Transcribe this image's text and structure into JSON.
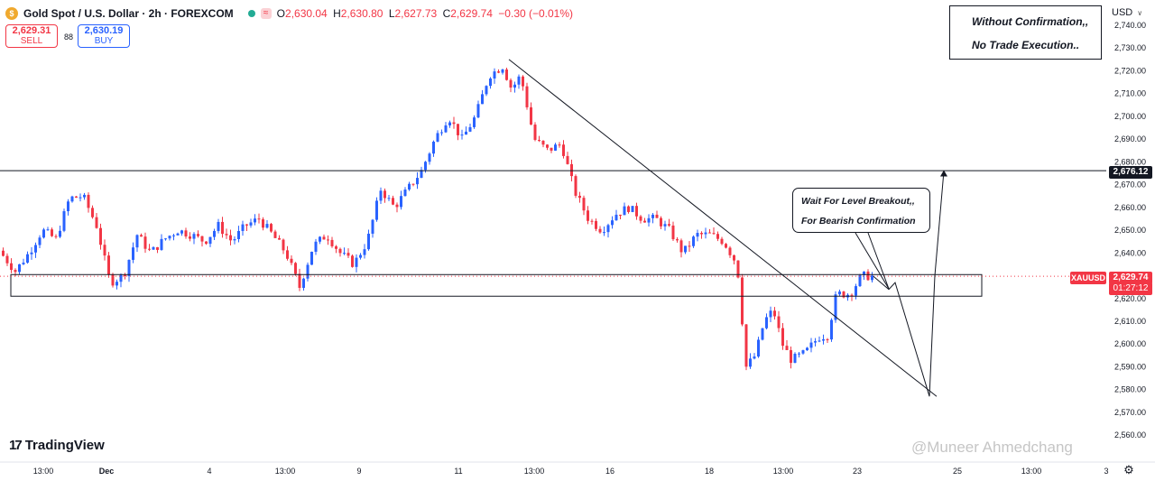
{
  "header": {
    "symbol_title": "Gold Spot / U.S. Dollar · 2h · FOREXCOM",
    "ohlc": {
      "o_label": "O",
      "o": "2,630.04",
      "h_label": "H",
      "h": "2,630.80",
      "l_label": "L",
      "l": "2,627.73",
      "c_label": "C",
      "c": "2,629.74",
      "change": "−0.30 (−0.01%)"
    },
    "icons": [
      "gold-coin-icon",
      "market-open-dot-icon",
      "wave-badge-icon"
    ]
  },
  "trade": {
    "sell_price": "2,629.31",
    "sell_label": "SELL",
    "spread": "88",
    "buy_price": "2,630.19",
    "buy_label": "BUY"
  },
  "notes": {
    "line1": "Without Confirmation,,",
    "line2": "No Trade Execution..",
    "callout_line1": "Wait For Level Breakout,,",
    "callout_line2": "For Bearish Confirmation"
  },
  "currency": "USD",
  "tags": {
    "level": "2,676.12",
    "symbol": "XAUUSD",
    "last": "2,629.74",
    "countdown": "01:27:12"
  },
  "branding": {
    "logo_mark": "17",
    "logo": "TradingView",
    "watermark": "@Muneer Ahmedchang"
  },
  "colors": {
    "up": "#2962ff",
    "down": "#f23645",
    "line": "#131722"
  },
  "chart_data": {
    "type": "candlestick",
    "title": "Gold Spot / U.S. Dollar · 2h · FOREXCOM",
    "ylim": [
      2553,
      2745
    ],
    "y_ticks": [
      2560,
      2570,
      2580,
      2590,
      2600,
      2610,
      2620,
      2630,
      2640,
      2650,
      2660,
      2670,
      2680,
      2690,
      2700,
      2710,
      2720,
      2730,
      2740
    ],
    "x_ticks": [
      "13:00",
      "Dec",
      "4",
      "13:00",
      "9",
      "11",
      "13:00",
      "16",
      "18",
      "13:00",
      "23",
      "25",
      "13:00",
      "3"
    ],
    "series": [
      {
        "name": "XAUUSD",
        "anchors": [
          [
            "0",
            2642
          ],
          [
            "20",
            2632
          ],
          [
            "35",
            2640
          ],
          [
            "50",
            2650
          ],
          [
            "65",
            2646
          ],
          [
            "80",
            2664
          ],
          [
            "95",
            2665
          ],
          [
            "110",
            2652
          ],
          [
            "125",
            2627
          ],
          [
            "140",
            2630
          ],
          [
            "155",
            2648
          ],
          [
            "170",
            2640
          ],
          [
            "185",
            2646
          ],
          [
            "200",
            2650
          ],
          [
            "215",
            2648
          ],
          [
            "230",
            2645
          ],
          [
            "245",
            2652
          ],
          [
            "260",
            2645
          ],
          [
            "275",
            2652
          ],
          [
            "290",
            2655
          ],
          [
            "305",
            2648
          ],
          [
            "320",
            2640
          ],
          [
            "335",
            2625
          ],
          [
            "350",
            2643
          ],
          [
            "365",
            2648
          ],
          [
            "380",
            2640
          ],
          [
            "395",
            2635
          ],
          [
            "410",
            2645
          ],
          [
            "425",
            2668
          ],
          [
            "440",
            2660
          ],
          [
            "455",
            2668
          ],
          [
            "470",
            2676
          ],
          [
            "485",
            2690
          ],
          [
            "500",
            2700
          ],
          [
            "515",
            2690
          ],
          [
            "530",
            2700
          ],
          [
            "545",
            2718
          ],
          [
            "560",
            2722
          ],
          [
            "570",
            2712
          ],
          [
            "580",
            2718
          ],
          [
            "595",
            2690
          ],
          [
            "610",
            2685
          ],
          [
            "625",
            2688
          ],
          [
            "640",
            2667
          ],
          [
            "655",
            2655
          ],
          [
            "670",
            2650
          ],
          [
            "685",
            2657
          ],
          [
            "700",
            2660
          ],
          [
            "715",
            2655
          ],
          [
            "730",
            2655
          ],
          [
            "745",
            2650
          ],
          [
            "760",
            2640
          ],
          [
            "775",
            2648
          ],
          [
            "790",
            2648
          ],
          [
            "805",
            2645
          ],
          [
            "820",
            2635
          ],
          [
            "830",
            2590
          ],
          [
            "840",
            2595
          ],
          [
            "850",
            2610
          ],
          [
            "860",
            2615
          ],
          [
            "870",
            2600
          ],
          [
            "880",
            2593
          ],
          [
            "895",
            2596
          ],
          [
            "910",
            2603
          ],
          [
            "920",
            2604
          ],
          [
            "930",
            2622
          ],
          [
            "945",
            2622
          ],
          [
            "958",
            2630
          ],
          [
            "968",
            2629.74
          ]
        ]
      }
    ],
    "annotations": {
      "resistance_level": 2676.12,
      "zone_top": 2630.5,
      "zone_bottom": 2621,
      "trendline_from": [
        2725,
        2577
      ],
      "projection": [
        2629.74,
        2624,
        2627,
        2577,
        2630,
        2676
      ]
    }
  }
}
